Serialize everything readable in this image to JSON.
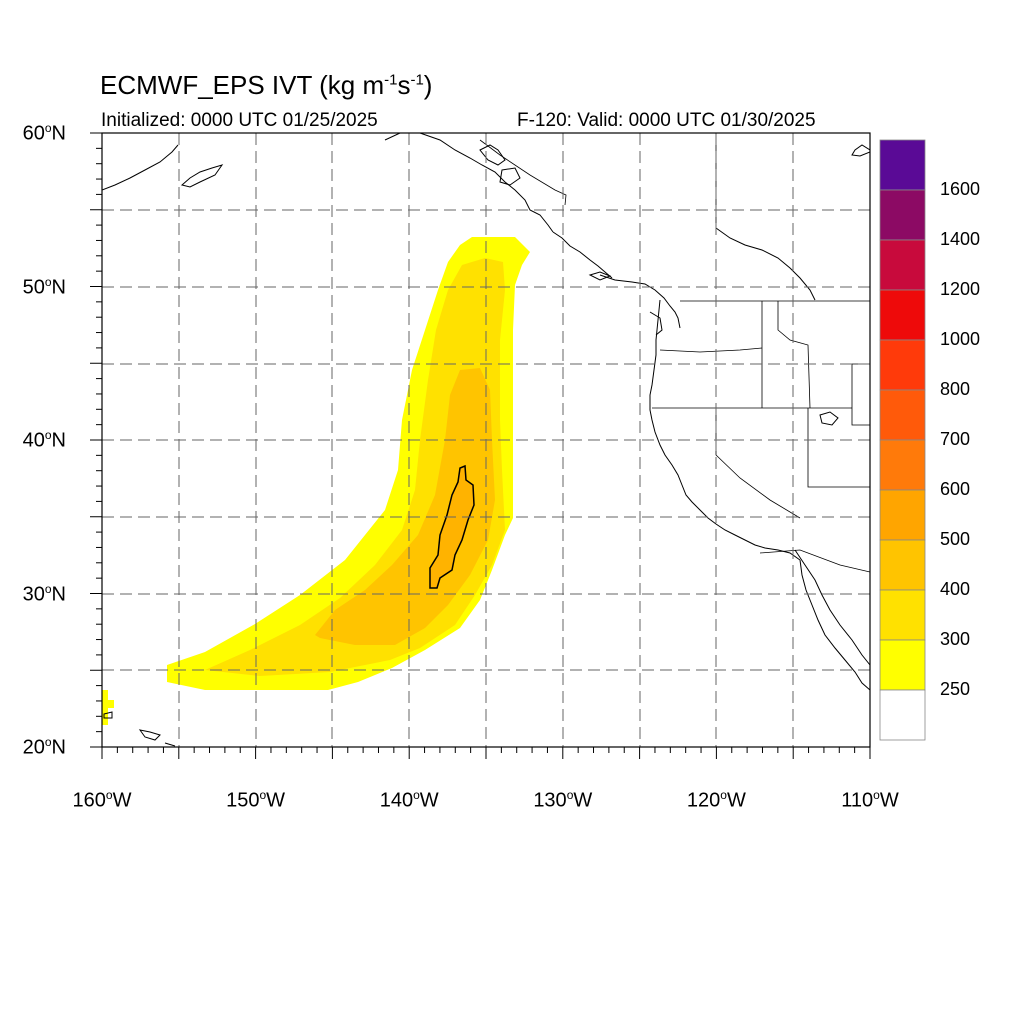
{
  "title": {
    "model": "ECMWF_EPS IVT (kg m",
    "exp1": "-1",
    "mid": "s",
    "exp2": "-1",
    "end": ")"
  },
  "subtitle_left": "Initialized: 0000 UTC 01/25/2025",
  "subtitle_right": "F-120: Valid: 0000 UTC 01/30/2025",
  "degree_symbol": "o",
  "lat_labels": [
    {
      "value": "60",
      "hemi": "N"
    },
    {
      "value": "50",
      "hemi": "N"
    },
    {
      "value": "40",
      "hemi": "N"
    },
    {
      "value": "30",
      "hemi": "N"
    },
    {
      "value": "20",
      "hemi": "N"
    }
  ],
  "lon_labels": [
    {
      "value": "160",
      "hemi": "W"
    },
    {
      "value": "150",
      "hemi": "W"
    },
    {
      "value": "140",
      "hemi": "W"
    },
    {
      "value": "130",
      "hemi": "W"
    },
    {
      "value": "120",
      "hemi": "W"
    },
    {
      "value": "110",
      "hemi": "W"
    }
  ],
  "colorbar": {
    "labels": [
      "1600",
      "1400",
      "1200",
      "1000",
      "800",
      "700",
      "600",
      "500",
      "400",
      "300",
      "250"
    ],
    "colors_top_to_bottom": [
      "#5a0a96",
      "#8c0a64",
      "#c80a3c",
      "#ee0a0a",
      "#ff3a0a",
      "#ff5a0a",
      "#ff7a0a",
      "#ffa500",
      "#ffc400",
      "#ffe100",
      "#ffff00",
      "#ffffff"
    ]
  },
  "map": {
    "extent": {
      "lon_min": -160,
      "lon_max": -110,
      "lat_min": 20,
      "lat_max": 60
    },
    "grid_step_deg": 5,
    "ivt_field_colors": {
      "250": "#ffff00",
      "300": "#ffe100",
      "400": "#ffc400"
    },
    "ivt_max_contour_level": "500"
  }
}
